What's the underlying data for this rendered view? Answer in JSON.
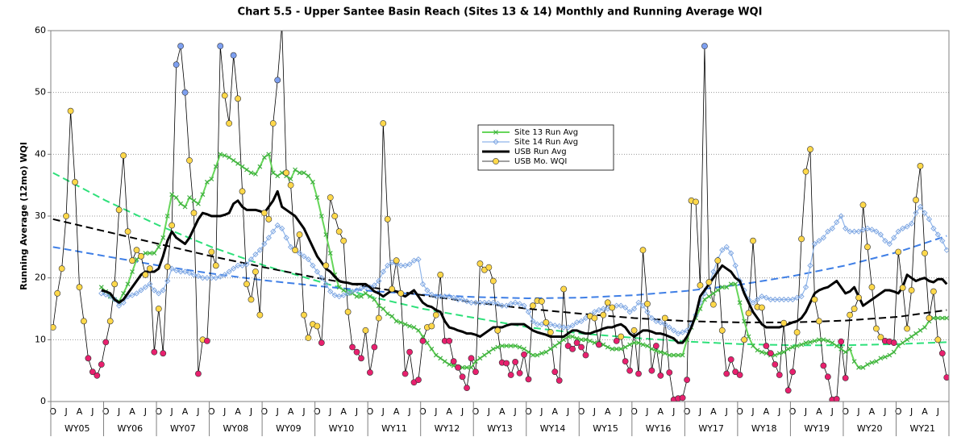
{
  "chart_data": {
    "type": "line",
    "title": "Chart 5.5 - Upper Santee Basin Reach (Sites 13 & 14) Monthly and Running Average WQI",
    "y_label": "Running Average (12mo) WQI",
    "ylim": [
      0,
      60
    ],
    "yticks": [
      0,
      10,
      20,
      30,
      40,
      50,
      60
    ],
    "grid": true,
    "legend": "upper-center",
    "categories": [
      "O",
      null,
      null,
      "J",
      null,
      null,
      "A",
      null,
      null,
      "J",
      null,
      null,
      "O",
      null,
      null,
      "J",
      null,
      null,
      "A",
      null,
      null,
      "J",
      null,
      null,
      "O",
      null,
      null,
      "J",
      null,
      null,
      "A",
      null,
      null,
      "J",
      null,
      null,
      "O",
      null,
      null,
      "J",
      null,
      null,
      "A",
      null,
      null,
      "J",
      null,
      null,
      "O",
      null,
      null,
      "J",
      null,
      null,
      "A",
      null,
      null,
      "J",
      null,
      null,
      "O",
      null,
      null,
      "J",
      null,
      null,
      "A",
      null,
      null,
      "J",
      null,
      null,
      "O",
      null,
      null,
      "J",
      null,
      null,
      "A",
      null,
      null,
      "J",
      null,
      null,
      "O",
      null,
      null,
      "J",
      null,
      null,
      "A",
      null,
      null,
      "J",
      null,
      null,
      "O",
      null,
      null,
      "J",
      null,
      null,
      "A",
      null,
      null,
      "J",
      null,
      null,
      "O",
      null,
      null,
      "J",
      null,
      null,
      "A",
      null,
      null,
      "J",
      null,
      null,
      "O",
      null,
      null,
      "J",
      null,
      null,
      "A",
      null,
      null,
      "J",
      null,
      null,
      "O",
      null,
      null,
      "J",
      null,
      null,
      "A",
      null,
      null,
      "J",
      null,
      null,
      "O",
      null,
      null,
      "J",
      null,
      null,
      "A",
      null,
      null,
      "J",
      null,
      null,
      "O",
      null,
      null,
      "J",
      null,
      null,
      "A",
      null,
      null,
      "J",
      null,
      null,
      "O",
      null,
      null,
      "J",
      null,
      null,
      "A",
      null,
      null,
      "J",
      null,
      null,
      "O",
      null,
      null,
      "J",
      null,
      null,
      "A",
      null,
      null,
      "J",
      null,
      null,
      "O",
      null,
      null,
      "J",
      null,
      null,
      "A",
      null,
      null,
      "J",
      null,
      null
    ],
    "groups": [
      "WY05",
      "WY06",
      "WY07",
      "WY08",
      "WY09",
      "WY10",
      "WY11",
      "WY12",
      "WY13",
      "WY14",
      "WY15",
      "WY16",
      "WY17",
      "WY18",
      "WY19",
      "WY20",
      "WY21"
    ],
    "series": [
      {
        "name": "Site 13 Run Avg",
        "color": "#66d65a",
        "marker_color": "#3fae3f",
        "marker": "x",
        "width": 2,
        "values": [
          null,
          null,
          null,
          null,
          null,
          null,
          null,
          null,
          null,
          null,
          null,
          18.5,
          17.8,
          17,
          16.5,
          16.2,
          17.5,
          19,
          21,
          23,
          23.5,
          24,
          24,
          24,
          25,
          26.5,
          30,
          33.5,
          33,
          32,
          31.5,
          33,
          32.5,
          32,
          33.5,
          35.5,
          36,
          38,
          40,
          39.8,
          39.5,
          39,
          38.5,
          38,
          37.5,
          37,
          36.8,
          38,
          39.5,
          40,
          37,
          36.5,
          37,
          36.5,
          36,
          37.5,
          37,
          37,
          36.5,
          35.5,
          33,
          30,
          27,
          24,
          20.5,
          18.5,
          18,
          17.5,
          17.5,
          17,
          17,
          17.5,
          17,
          16.5,
          15.5,
          15,
          14.2,
          13.8,
          13,
          12.8,
          12.5,
          12.2,
          12,
          11.5,
          10.5,
          9.5,
          8.5,
          7.5,
          7,
          6.5,
          6,
          5.8,
          5.6,
          5.5,
          5.5,
          5.5,
          6.5,
          7,
          7.5,
          8,
          8.5,
          8.8,
          9,
          9,
          9,
          9,
          8.8,
          8.5,
          8,
          7.5,
          7.5,
          7.8,
          8,
          8.5,
          9,
          9.5,
          10,
          10.5,
          10.5,
          10.2,
          10,
          10,
          9.8,
          9.5,
          9.5,
          9.2,
          8.8,
          8.5,
          8.5,
          8.5,
          8.8,
          9.2,
          9.5,
          9.5,
          9.2,
          9,
          8.5,
          8.2,
          8,
          7.8,
          7.5,
          7.5,
          7.5,
          7.5,
          10,
          12,
          13.5,
          15,
          16.5,
          17,
          17.5,
          18,
          18.5,
          18.5,
          19,
          19,
          16,
          13,
          10.5,
          9,
          8.3,
          8,
          7.8,
          7.5,
          7.5,
          7.8,
          8,
          8.5,
          8.8,
          9,
          9.2,
          9.5,
          9.6,
          9.8,
          10,
          10,
          9.8,
          9.5,
          9,
          8.5,
          8,
          8.5,
          6.5,
          5.5,
          5.5,
          6,
          6.3,
          6.5,
          7,
          7.2,
          7.5,
          8,
          9,
          9.5,
          10,
          10.5,
          11,
          11.5,
          12,
          13,
          13.5,
          13.5,
          13.5,
          13.5
        ]
      },
      {
        "name": "Site 14 Run Avg",
        "color": "#8fb5ea",
        "marker_color": "#7aa3e0",
        "marker": "diamond",
        "width": 1.2,
        "values": [
          null,
          null,
          null,
          null,
          null,
          null,
          null,
          null,
          null,
          null,
          null,
          17.5,
          17.3,
          17,
          16.5,
          15.5,
          16,
          17,
          17.2,
          17.5,
          18,
          18.5,
          19,
          18,
          17.5,
          18,
          19.5,
          21.5,
          21.2,
          21,
          21,
          20.8,
          20.5,
          20.3,
          20,
          20,
          20,
          20,
          20.2,
          20.5,
          21,
          21.5,
          22,
          22,
          22.2,
          23,
          23.8,
          24.5,
          25.5,
          26.5,
          27.5,
          28.5,
          28,
          26.5,
          25,
          24.5,
          24,
          23.5,
          23,
          22,
          21,
          20,
          19,
          17.8,
          17.2,
          17,
          17.2,
          17.5,
          17.8,
          18,
          18.3,
          18.5,
          18.5,
          18.8,
          19.5,
          21,
          22,
          22.5,
          22.3,
          22,
          22,
          22.2,
          22.8,
          23,
          19,
          18,
          17.3,
          17,
          17,
          17,
          17,
          16.8,
          16.5,
          16.5,
          16.2,
          16,
          16,
          16,
          16,
          16,
          16,
          15.8,
          15.5,
          15.5,
          15.8,
          16,
          15.8,
          15.5,
          14.5,
          13,
          12.5,
          12.5,
          12.5,
          12.5,
          12.3,
          12.2,
          12,
          12,
          12.3,
          12.8,
          13,
          13.5,
          14,
          14.5,
          14.8,
          15,
          15,
          15.2,
          15.5,
          15.5,
          15.2,
          14.5,
          15,
          16,
          15.5,
          14.5,
          13.5,
          13,
          12.8,
          12.5,
          12,
          11.5,
          11,
          11.2,
          11.5,
          12.5,
          14,
          16,
          17.5,
          19,
          21,
          23,
          24.5,
          25,
          24,
          22,
          19.5,
          18,
          16.5,
          16,
          16.5,
          17,
          16.8,
          16.5,
          16.5,
          16.5,
          16.5,
          16.5,
          16.5,
          16.8,
          17,
          18.5,
          22,
          25.5,
          26,
          26.5,
          27.5,
          28,
          29,
          30,
          28,
          27.5,
          27.5,
          27.5,
          27.8,
          28,
          27.8,
          27.5,
          27,
          26,
          25.5,
          26.5,
          27.5,
          28,
          28.3,
          28.8,
          30.5,
          31.5,
          30.5,
          29.5,
          28,
          27,
          26,
          24.5
        ]
      },
      {
        "name": "USB Run Avg",
        "color": "#000000",
        "width": 3,
        "values": [
          null,
          null,
          null,
          null,
          null,
          null,
          null,
          null,
          null,
          null,
          null,
          18,
          17.8,
          17.5,
          16.5,
          16,
          16.5,
          17.5,
          18.5,
          19.5,
          20.5,
          21,
          21,
          21,
          21.5,
          23.5,
          26,
          27.5,
          26.5,
          26,
          25.5,
          26.5,
          28,
          29.5,
          30.5,
          30.3,
          30,
          30,
          30,
          30.2,
          30.5,
          32,
          32.5,
          31.5,
          31,
          31,
          31,
          30.8,
          30.5,
          31.5,
          32.5,
          34,
          31.5,
          31,
          30.5,
          30,
          29,
          28,
          26.5,
          25,
          23.5,
          22.5,
          21.5,
          21,
          20.2,
          19.5,
          19.3,
          19.2,
          19,
          19,
          19,
          19,
          18.5,
          17.8,
          17.5,
          17,
          17.5,
          18,
          17.8,
          17.3,
          17,
          17.5,
          18,
          17,
          16,
          15.5,
          15.3,
          14.8,
          14.5,
          13,
          12,
          11.8,
          11.5,
          11.3,
          11,
          11,
          10.8,
          10.5,
          11,
          11.5,
          12,
          12,
          12,
          12.3,
          12.5,
          12.5,
          12.5,
          12.5,
          12,
          11.5,
          11.2,
          11,
          10.8,
          10.5,
          10.5,
          10.5,
          10.5,
          11,
          11.5,
          11.5,
          11.2,
          11,
          11,
          11.3,
          11.5,
          11.8,
          12,
          12,
          12.3,
          12.5,
          12,
          11,
          10.5,
          11,
          11.5,
          11.5,
          11.3,
          11,
          11,
          10.8,
          10.5,
          10.2,
          9.5,
          9.5,
          10.5,
          12,
          14,
          17,
          18,
          19,
          20,
          21,
          22,
          21.5,
          21,
          20,
          19.5,
          17.5,
          16,
          14.5,
          13.5,
          12.5,
          12,
          12,
          12,
          12,
          12.3,
          12.5,
          12.8,
          13,
          13.5,
          14.5,
          16,
          17.5,
          18,
          18.3,
          18.5,
          19,
          19.5,
          18.5,
          17.5,
          17.8,
          18.5,
          17,
          15.5,
          16,
          16.5,
          17,
          17.5,
          18,
          18,
          17.8,
          17.5,
          18.5,
          20.5,
          20,
          19.5,
          19.8,
          20,
          19.5,
          19.3,
          19.8,
          19.8,
          19
        ]
      },
      {
        "name": "USB Mo. WQI",
        "color": "#000000",
        "width": 0.8,
        "marker": "circle",
        "marker_breaks": [
          10,
          50
        ],
        "marker_colors": [
          "#e8206e",
          "#ffd84a",
          "#7ea0f0"
        ],
        "values": [
          12,
          17.5,
          21.5,
          30,
          47,
          35.5,
          18.5,
          13,
          7,
          4.8,
          4.2,
          6,
          9.6,
          13,
          19,
          31,
          39.8,
          27.5,
          22.8,
          24.5,
          23.5,
          20.5,
          21.5,
          8,
          15,
          7.8,
          21.8,
          28.5,
          54.5,
          57.5,
          50,
          39,
          30.5,
          4.5,
          10,
          9.8,
          24.2,
          22,
          57.5,
          49.5,
          45,
          56,
          49,
          34,
          19,
          16.5,
          21,
          14,
          30.5,
          29.5,
          45,
          52,
          61,
          37,
          35,
          24.5,
          27,
          14,
          10.3,
          12.5,
          12.2,
          9.5,
          22,
          33,
          30,
          27.5,
          26,
          14.5,
          8.8,
          8,
          7,
          11.5,
          4.7,
          8.8,
          13.5,
          45,
          29.5,
          18.2,
          22.8,
          17.5,
          4.5,
          8,
          3.1,
          3.5,
          9.8,
          12,
          12.2,
          14,
          20.5,
          9.8,
          9.8,
          6.5,
          5.5,
          4,
          2.2,
          7,
          4.8,
          22.3,
          21.3,
          21.7,
          19.5,
          11.5,
          6.3,
          6.2,
          4.3,
          6.4,
          4.6,
          7.6,
          3.6,
          15.5,
          16.3,
          16.2,
          12.8,
          11.2,
          4.8,
          3.4,
          18.2,
          9,
          8.5,
          9.5,
          8.8,
          7.5,
          13.8,
          13.5,
          9.2,
          14,
          16,
          15.2,
          9.8,
          10.5,
          6.5,
          5,
          11.5,
          4.5,
          24.5,
          15.8,
          5,
          9,
          4.2,
          13.5,
          4.7,
          0.3,
          0.5,
          0.6,
          3.5,
          32.5,
          32.3,
          18.8,
          57.5,
          19.3,
          15.7,
          22.8,
          11.5,
          4.5,
          6.8,
          4.8,
          4.3,
          10,
          14.3,
          26,
          15.3,
          15.2,
          9,
          7.8,
          6,
          4.3,
          12.7,
          1.8,
          4.8,
          11.2,
          26.3,
          37.2,
          40.8,
          16.5,
          13,
          5.8,
          4,
          0.3,
          0.4,
          9.7,
          3.8,
          14,
          15,
          16.8,
          31.8,
          25,
          18.5,
          11.8,
          10.4,
          9.8,
          9.7,
          9.5,
          24.2,
          18.4,
          11.8,
          18,
          32.6,
          38.1,
          24,
          13.5,
          17.8,
          10,
          7.8,
          3.9
        ]
      }
    ],
    "trendlines": [
      {
        "color": "#2ee07a",
        "x": [
          0,
          12,
          24,
          36,
          48,
          60,
          72,
          84,
          96,
          108,
          120,
          132,
          144,
          156,
          168,
          180,
          192,
          203
        ],
        "values": [
          37,
          32.5,
          28.5,
          25,
          22,
          19.5,
          17,
          15,
          13.5,
          12,
          11,
          10.3,
          9.7,
          9.3,
          9.1,
          9.1,
          9.3,
          9.6
        ]
      },
      {
        "color": "#3f7fe6",
        "x": [
          0,
          12,
          24,
          36,
          48,
          60,
          72,
          84,
          96,
          108,
          120,
          132,
          144,
          156,
          168,
          180,
          192,
          203
        ],
        "values": [
          25,
          23.5,
          22,
          20.7,
          19.6,
          18.7,
          17.9,
          17.3,
          16.9,
          16.7,
          16.8,
          17.2,
          17.9,
          18.9,
          20.3,
          22,
          24.2,
          26.8
        ]
      },
      {
        "color": "#000000",
        "x": [
          0,
          12,
          24,
          36,
          48,
          60,
          72,
          84,
          96,
          108,
          120,
          132,
          144,
          156,
          168,
          180,
          192,
          203
        ],
        "values": [
          29.5,
          27.5,
          25.5,
          23.5,
          21.7,
          20,
          18.5,
          17.2,
          16,
          15,
          14.2,
          13.5,
          13,
          12.8,
          12.8,
          13.1,
          13.7,
          14.8
        ]
      }
    ]
  }
}
